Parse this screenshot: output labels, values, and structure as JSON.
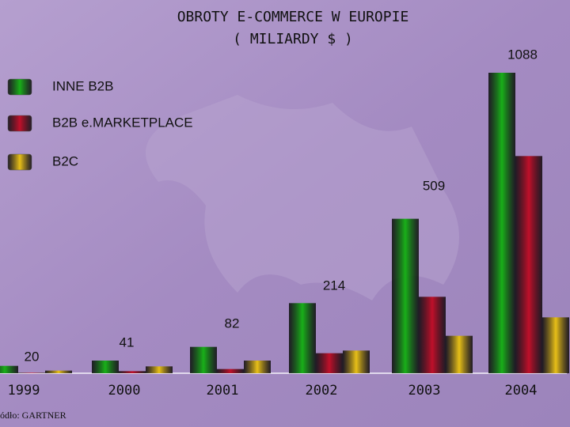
{
  "chart_data": {
    "type": "bar",
    "title": "OBROTY E-COMMERCE W EUROPIE",
    "subtitle": "( MILIARDY $ )",
    "source": "ódło: GARTNER",
    "categories": [
      "1999",
      "2000",
      "2001",
      "2002",
      "2003",
      "2004"
    ],
    "series": [
      {
        "name": "INNE B2B",
        "color": "#19b019",
        "values": [
          14,
          24,
          50,
          133,
          293,
          570
        ]
      },
      {
        "name": "B2B e.MARKETPLACE",
        "color": "#c0102a",
        "values": [
          1,
          4,
          8,
          38,
          145,
          412
        ]
      },
      {
        "name": "B2C",
        "color": "#e8c018",
        "values": [
          5,
          13,
          24,
          43,
          71,
          106
        ]
      }
    ],
    "totals": [
      20,
      41,
      82,
      214,
      509,
      1088
    ]
  }
}
